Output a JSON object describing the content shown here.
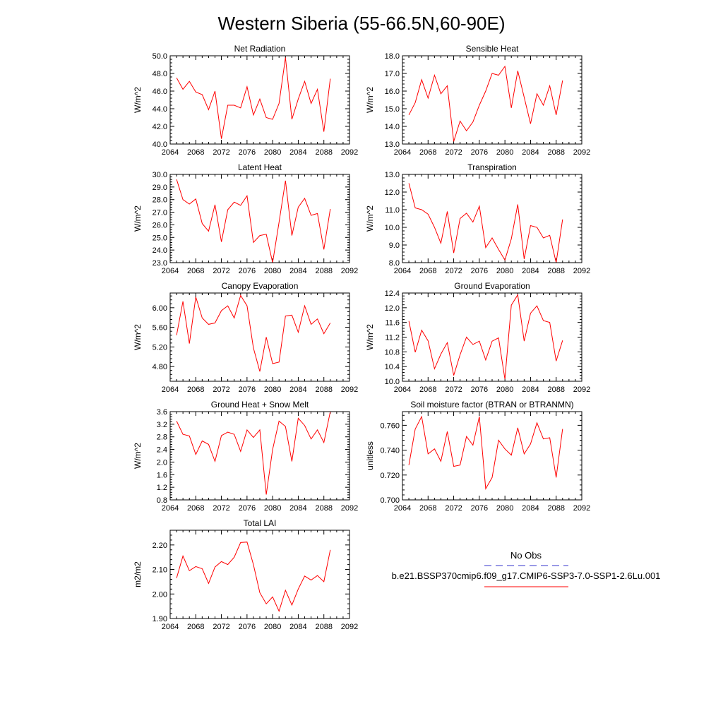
{
  "figure": {
    "title": "Western Siberia (55-66.5N,60-90E)"
  },
  "legend": {
    "obs_label": "No Obs",
    "obs_color": "#3333cc",
    "case_label": "b.e21.BSSP370cmip6.f09_g17.CMIP6-SSP3-7.0-SSP1-2.6Lu.001",
    "case_color": "#ff0000"
  },
  "chart_data": [
    {
      "type": "line",
      "title": "Net Radiation",
      "ylabel": "W/m^2",
      "xlim": [
        2064,
        2092
      ],
      "ylim": [
        40.0,
        50.0
      ],
      "xticks": [
        2064,
        2068,
        2072,
        2076,
        2080,
        2084,
        2088,
        2092
      ],
      "yticks": [
        "40.0",
        "42.0",
        "44.0",
        "46.0",
        "48.0",
        "50.0"
      ],
      "series": [
        {
          "x": [
            2065,
            2066,
            2067,
            2068,
            2069,
            2070,
            2071,
            2072,
            2073,
            2074,
            2075,
            2076,
            2077,
            2078,
            2079,
            2080,
            2081,
            2082,
            2083,
            2084,
            2085,
            2086,
            2087,
            2088,
            2089
          ],
          "y": [
            47.5,
            46.2,
            47.1,
            45.9,
            45.6,
            43.9,
            46.0,
            40.6,
            44.4,
            44.4,
            44.1,
            46.5,
            43.3,
            45.1,
            43.0,
            42.8,
            44.6,
            49.8,
            42.8,
            45.1,
            47.1,
            44.6,
            46.2,
            41.4,
            47.4
          ]
        }
      ]
    },
    {
      "type": "line",
      "title": "Sensible Heat",
      "ylabel": "W/m^2",
      "xlim": [
        2064,
        2092
      ],
      "ylim": [
        13.0,
        18.0
      ],
      "xticks": [
        2064,
        2068,
        2072,
        2076,
        2080,
        2084,
        2088,
        2092
      ],
      "yticks": [
        "13.0",
        "14.0",
        "15.0",
        "16.0",
        "17.0",
        "18.0"
      ],
      "series": [
        {
          "x": [
            2065,
            2066,
            2067,
            2068,
            2069,
            2070,
            2071,
            2072,
            2073,
            2074,
            2075,
            2076,
            2077,
            2078,
            2079,
            2080,
            2081,
            2082,
            2083,
            2084,
            2085,
            2086,
            2087,
            2088,
            2089
          ],
          "y": [
            14.65,
            15.35,
            16.65,
            15.6,
            16.9,
            15.85,
            16.3,
            13.15,
            14.3,
            13.75,
            14.25,
            15.2,
            16.0,
            17.0,
            16.9,
            17.4,
            15.05,
            17.15,
            15.65,
            14.15,
            15.85,
            15.2,
            16.3,
            14.65,
            16.6
          ]
        }
      ]
    },
    {
      "type": "line",
      "title": "Latent Heat",
      "ylabel": "W/m^2",
      "xlim": [
        2064,
        2092
      ],
      "ylim": [
        23.0,
        30.0
      ],
      "xticks": [
        2064,
        2068,
        2072,
        2076,
        2080,
        2084,
        2088,
        2092
      ],
      "yticks": [
        "23.0",
        "24.0",
        "25.0",
        "26.0",
        "27.0",
        "28.0",
        "29.0",
        "30.0"
      ],
      "series": [
        {
          "x": [
            2065,
            2066,
            2067,
            2068,
            2069,
            2070,
            2071,
            2072,
            2073,
            2074,
            2075,
            2076,
            2077,
            2078,
            2079,
            2080,
            2081,
            2082,
            2083,
            2084,
            2085,
            2086,
            2087,
            2088,
            2089
          ],
          "y": [
            29.6,
            28.0,
            27.65,
            28.05,
            26.1,
            25.5,
            27.6,
            24.65,
            27.2,
            27.8,
            27.55,
            28.3,
            24.6,
            25.15,
            25.25,
            23.0,
            26.2,
            29.5,
            25.15,
            27.4,
            28.1,
            26.75,
            26.9,
            24.05,
            27.25
          ]
        }
      ]
    },
    {
      "type": "line",
      "title": "Transpiration",
      "ylabel": "W/m^2",
      "xlim": [
        2064,
        2092
      ],
      "ylim": [
        8.0,
        13.0
      ],
      "xticks": [
        2064,
        2068,
        2072,
        2076,
        2080,
        2084,
        2088,
        2092
      ],
      "yticks": [
        "8.0",
        "9.0",
        "10.0",
        "11.0",
        "12.0",
        "13.0"
      ],
      "series": [
        {
          "x": [
            2065,
            2066,
            2067,
            2068,
            2069,
            2070,
            2071,
            2072,
            2073,
            2074,
            2075,
            2076,
            2077,
            2078,
            2079,
            2080,
            2081,
            2082,
            2083,
            2084,
            2085,
            2086,
            2087,
            2088,
            2089
          ],
          "y": [
            12.5,
            11.1,
            11.0,
            10.75,
            10.0,
            9.1,
            10.9,
            8.55,
            10.5,
            10.8,
            10.3,
            11.2,
            8.85,
            9.4,
            8.75,
            8.15,
            9.35,
            11.3,
            8.2,
            10.1,
            10.0,
            9.4,
            9.55,
            8.0,
            10.45
          ]
        }
      ]
    },
    {
      "type": "line",
      "title": "Canopy Evaporation",
      "ylabel": "W/m^2",
      "xlim": [
        2064,
        2092
      ],
      "ylim": [
        4.5,
        6.3
      ],
      "xticks": [
        2064,
        2068,
        2072,
        2076,
        2080,
        2084,
        2088,
        2092
      ],
      "yticks": [
        "4.80",
        "5.20",
        "5.60",
        "6.00"
      ],
      "series": [
        {
          "x": [
            2065,
            2066,
            2067,
            2068,
            2069,
            2070,
            2071,
            2072,
            2073,
            2074,
            2075,
            2076,
            2077,
            2078,
            2079,
            2080,
            2081,
            2082,
            2083,
            2084,
            2085,
            2086,
            2087,
            2088,
            2089
          ],
          "y": [
            5.44,
            6.13,
            5.27,
            6.22,
            5.79,
            5.66,
            5.69,
            5.94,
            6.04,
            5.79,
            6.25,
            6.04,
            5.18,
            4.7,
            5.4,
            4.86,
            4.89,
            5.83,
            5.85,
            5.5,
            6.04,
            5.66,
            5.77,
            5.47,
            5.69
          ]
        }
      ]
    },
    {
      "type": "line",
      "title": "Ground Evaporation",
      "ylabel": "W/m^2",
      "xlim": [
        2064,
        2092
      ],
      "ylim": [
        10.0,
        12.4
      ],
      "xticks": [
        2064,
        2068,
        2072,
        2076,
        2080,
        2084,
        2088,
        2092
      ],
      "yticks": [
        "10.0",
        "10.4",
        "10.8",
        "11.2",
        "11.6",
        "12.0",
        "12.4"
      ],
      "series": [
        {
          "x": [
            2065,
            2066,
            2067,
            2068,
            2069,
            2070,
            2071,
            2072,
            2073,
            2074,
            2075,
            2076,
            2077,
            2078,
            2079,
            2080,
            2081,
            2082,
            2083,
            2084,
            2085,
            2086,
            2087,
            2088,
            2089
          ],
          "y": [
            11.64,
            10.79,
            11.39,
            11.1,
            10.34,
            10.74,
            11.05,
            10.16,
            10.72,
            11.2,
            11.0,
            11.09,
            10.58,
            11.09,
            11.18,
            10.06,
            12.07,
            12.35,
            11.09,
            11.85,
            12.05,
            11.65,
            11.6,
            10.55,
            11.11
          ]
        }
      ]
    },
    {
      "type": "line",
      "title": "Ground Heat + Snow Melt",
      "ylabel": "W/m^2",
      "xlim": [
        2064,
        2092
      ],
      "ylim": [
        0.8,
        3.6
      ],
      "xticks": [
        2064,
        2068,
        2072,
        2076,
        2080,
        2084,
        2088,
        2092
      ],
      "yticks": [
        "0.8",
        "1.2",
        "1.6",
        "2.0",
        "2.4",
        "2.8",
        "3.2",
        "3.6"
      ],
      "series": [
        {
          "x": [
            2065,
            2066,
            2067,
            2068,
            2069,
            2070,
            2071,
            2072,
            2073,
            2074,
            2075,
            2076,
            2077,
            2078,
            2079,
            2080,
            2081,
            2082,
            2083,
            2084,
            2085,
            2086,
            2087,
            2088,
            2089
          ],
          "y": [
            3.3,
            2.88,
            2.83,
            2.24,
            2.67,
            2.56,
            2.02,
            2.84,
            2.95,
            2.88,
            2.34,
            3.02,
            2.78,
            3.02,
            0.97,
            2.4,
            3.3,
            3.13,
            2.02,
            3.39,
            3.16,
            2.73,
            3.02,
            2.62,
            3.6
          ]
        }
      ]
    },
    {
      "type": "line",
      "title": "Soil moisture factor (BTRAN or BTRANMN)",
      "ylabel": "unitless",
      "xlim": [
        2064,
        2092
      ],
      "ylim": [
        0.7,
        0.771
      ],
      "xticks": [
        2064,
        2068,
        2072,
        2076,
        2080,
        2084,
        2088,
        2092
      ],
      "yticks": [
        "0.700",
        "0.720",
        "0.740",
        "0.760"
      ],
      "series": [
        {
          "x": [
            2065,
            2066,
            2067,
            2068,
            2069,
            2070,
            2071,
            2072,
            2073,
            2074,
            2075,
            2076,
            2077,
            2078,
            2079,
            2080,
            2081,
            2082,
            2083,
            2084,
            2085,
            2086,
            2087,
            2088,
            2089
          ],
          "y": [
            0.728,
            0.757,
            0.767,
            0.737,
            0.741,
            0.731,
            0.755,
            0.727,
            0.728,
            0.751,
            0.744,
            0.767,
            0.709,
            0.718,
            0.748,
            0.741,
            0.736,
            0.758,
            0.737,
            0.745,
            0.762,
            0.749,
            0.75,
            0.718,
            0.757
          ]
        }
      ]
    },
    {
      "type": "line",
      "title": "Total LAI",
      "ylabel": "m2/m2",
      "xlim": [
        2064,
        2092
      ],
      "ylim": [
        1.9,
        2.26
      ],
      "xticks": [
        2064,
        2068,
        2072,
        2076,
        2080,
        2084,
        2088,
        2092
      ],
      "yticks": [
        "1.90",
        "2.00",
        "2.10",
        "2.20"
      ],
      "series": [
        {
          "x": [
            2065,
            2066,
            2067,
            2068,
            2069,
            2070,
            2071,
            2072,
            2073,
            2074,
            2075,
            2076,
            2077,
            2078,
            2079,
            2080,
            2081,
            2082,
            2083,
            2084,
            2085,
            2086,
            2087,
            2088,
            2089
          ],
          "y": [
            2.065,
            2.155,
            2.095,
            2.112,
            2.103,
            2.043,
            2.11,
            2.132,
            2.12,
            2.15,
            2.21,
            2.212,
            2.12,
            2.005,
            1.96,
            1.988,
            1.93,
            2.015,
            1.955,
            2.02,
            2.073,
            2.057,
            2.075,
            2.05,
            2.18
          ]
        }
      ]
    }
  ]
}
